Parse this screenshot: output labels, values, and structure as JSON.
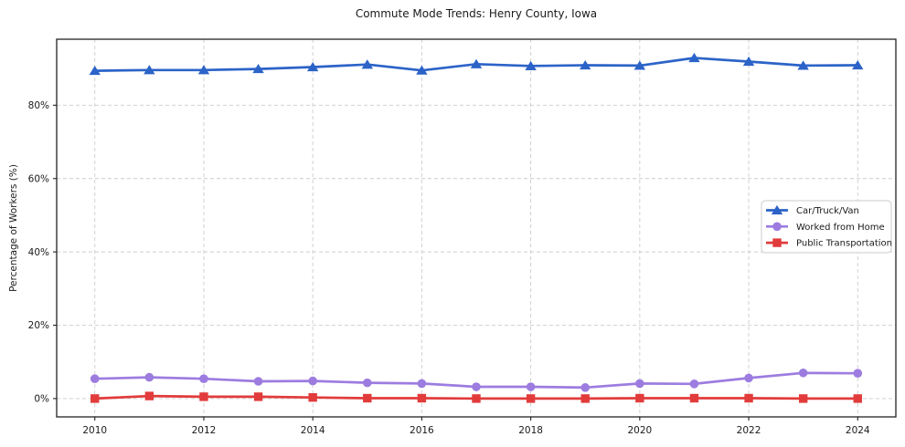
{
  "chart_data": {
    "type": "line",
    "title": "Commute Mode Trends: Henry County, Iowa",
    "xlabel": "",
    "ylabel": "Percentage of Workers (%)",
    "x": [
      2010,
      2011,
      2012,
      2013,
      2014,
      2015,
      2016,
      2017,
      2018,
      2019,
      2020,
      2021,
      2022,
      2023,
      2024
    ],
    "series": [
      {
        "name": "Car/Truck/Van",
        "color": "#2c63c8",
        "marker": "triangle",
        "values": [
          89.4,
          89.6,
          89.6,
          89.9,
          90.4,
          91.1,
          89.5,
          91.2,
          90.7,
          90.9,
          90.8,
          92.9,
          91.9,
          90.8,
          90.9
        ]
      },
      {
        "name": "Worked from Home",
        "color": "#9d7ce0",
        "marker": "circle",
        "values": [
          5.4,
          5.8,
          5.4,
          4.7,
          4.8,
          4.3,
          4.1,
          3.2,
          3.2,
          3.0,
          4.1,
          4.0,
          5.6,
          7.0,
          6.9
        ]
      },
      {
        "name": "Public Transportation",
        "color": "#e23b3b",
        "marker": "square",
        "values": [
          0.0,
          0.7,
          0.5,
          0.5,
          0.3,
          0.1,
          0.1,
          0.0,
          0.0,
          0.0,
          0.1,
          0.1,
          0.1,
          0.0,
          0.0
        ]
      }
    ],
    "x_ticks": [
      2010,
      2012,
      2014,
      2016,
      2018,
      2020,
      2022,
      2024
    ],
    "y_ticks": [
      {
        "value": 0,
        "label": "0%"
      },
      {
        "value": 20,
        "label": "20%"
      },
      {
        "value": 40,
        "label": "40%"
      },
      {
        "value": 60,
        "label": "60%"
      },
      {
        "value": 80,
        "label": "80%"
      }
    ],
    "xlim": [
      2009.3,
      2024.7
    ],
    "ylim": [
      -5,
      98
    ],
    "grid": true,
    "legend_position": "center-right",
    "style": {
      "grid_color": "#cccccc",
      "spine_color": "#222222",
      "text_color": "#1a1a1a",
      "legend_border_color": "#cccccc",
      "background_color": "#ffffff"
    }
  }
}
